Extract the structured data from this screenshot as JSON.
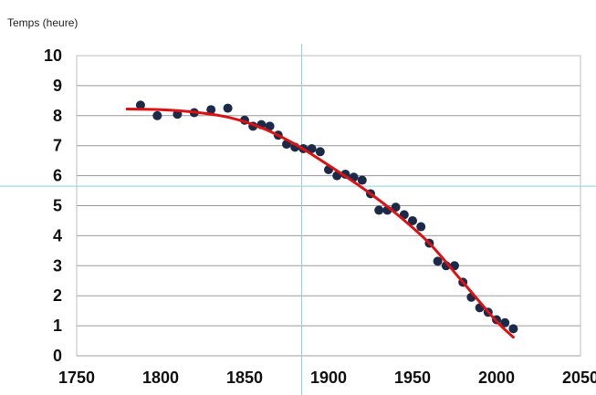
{
  "chart_data": {
    "type": "scatter",
    "title": "",
    "xlabel": "",
    "ylabel": "Temps (heure)",
    "xlim": [
      1750,
      2050
    ],
    "ylim": [
      0,
      10
    ],
    "x_ticks": [
      1750,
      1800,
      1850,
      1900,
      1950,
      2000,
      2050
    ],
    "y_ticks": [
      0,
      1,
      2,
      3,
      4,
      5,
      6,
      7,
      8,
      9,
      10
    ],
    "grid": "horizontal",
    "legend": "none",
    "series": [
      {
        "type": "scatter",
        "color": "#1c2a4a",
        "points": [
          [
            1788,
            8.35
          ],
          [
            1798,
            8.0
          ],
          [
            1810,
            8.05
          ],
          [
            1820,
            8.1
          ],
          [
            1830,
            8.2
          ],
          [
            1840,
            8.25
          ],
          [
            1850,
            7.85
          ],
          [
            1855,
            7.65
          ],
          [
            1860,
            7.7
          ],
          [
            1865,
            7.65
          ],
          [
            1870,
            7.35
          ],
          [
            1875,
            7.05
          ],
          [
            1880,
            6.95
          ],
          [
            1885,
            6.9
          ],
          [
            1890,
            6.9
          ],
          [
            1895,
            6.8
          ],
          [
            1900,
            6.2
          ],
          [
            1905,
            6.0
          ],
          [
            1910,
            6.05
          ],
          [
            1915,
            5.95
          ],
          [
            1920,
            5.85
          ],
          [
            1925,
            5.4
          ],
          [
            1930,
            4.85
          ],
          [
            1935,
            4.85
          ],
          [
            1940,
            4.95
          ],
          [
            1945,
            4.7
          ],
          [
            1950,
            4.5
          ],
          [
            1955,
            4.3
          ],
          [
            1960,
            3.75
          ],
          [
            1965,
            3.15
          ],
          [
            1970,
            3.0
          ],
          [
            1975,
            3.0
          ],
          [
            1980,
            2.45
          ],
          [
            1985,
            1.95
          ],
          [
            1990,
            1.6
          ],
          [
            1995,
            1.45
          ],
          [
            2000,
            1.2
          ],
          [
            2005,
            1.1
          ],
          [
            2010,
            0.9
          ]
        ]
      },
      {
        "type": "line",
        "color": "#dd1111",
        "points": [
          [
            1780,
            8.22
          ],
          [
            1800,
            8.2
          ],
          [
            1820,
            8.12
          ],
          [
            1840,
            7.95
          ],
          [
            1860,
            7.6
          ],
          [
            1880,
            7.05
          ],
          [
            1900,
            6.35
          ],
          [
            1920,
            5.6
          ],
          [
            1940,
            4.75
          ],
          [
            1960,
            3.75
          ],
          [
            1980,
            2.45
          ],
          [
            2000,
            1.15
          ],
          [
            2010,
            0.62
          ]
        ]
      }
    ],
    "annotations": [
      {
        "type": "crosshair",
        "x": 1884,
        "y": 5.65,
        "color": "#8fd0e8"
      }
    ]
  }
}
